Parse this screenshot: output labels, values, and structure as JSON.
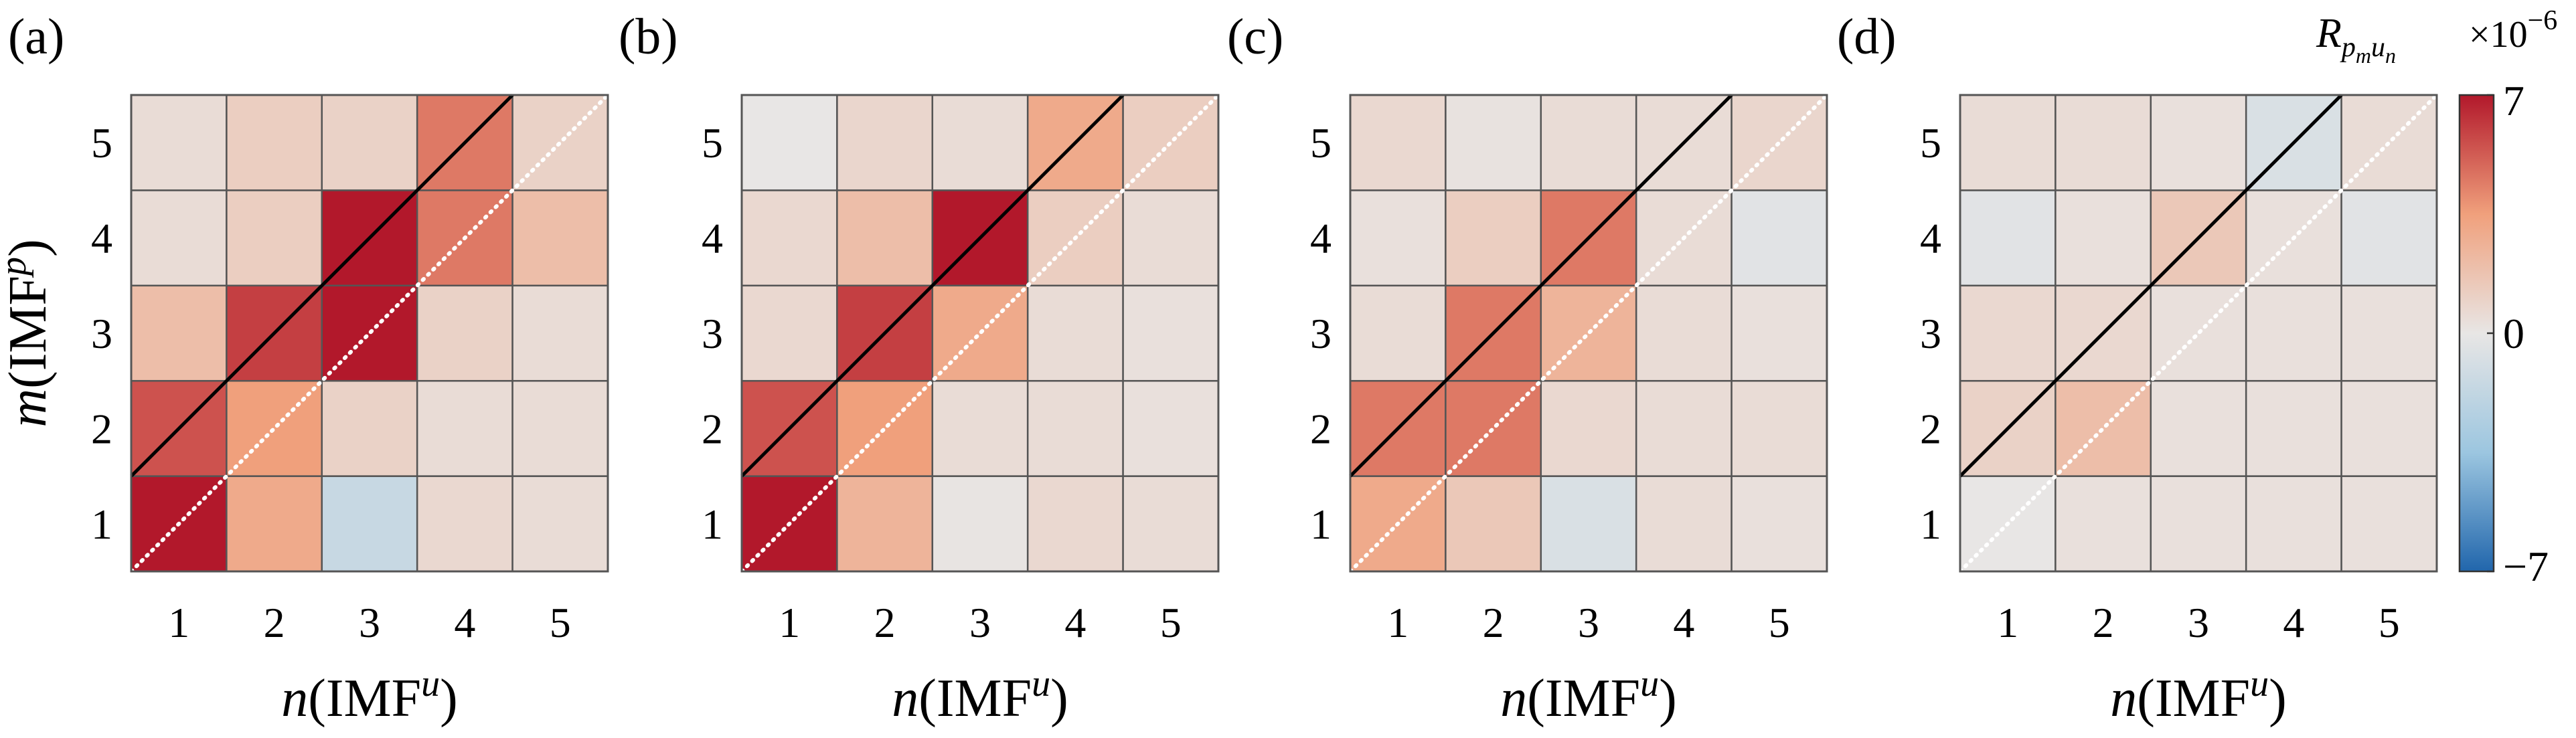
{
  "chart_data": [
    {
      "type": "heatmap",
      "title": "(a)",
      "x_label": [
        "n",
        "(IMF",
        "u",
        ")"
      ],
      "y_label": [
        "m",
        "(IMF",
        "p",
        ")"
      ],
      "xlim": [
        0.5,
        5.5
      ],
      "ylim": [
        0.5,
        5.5
      ],
      "xticks": [
        1,
        2,
        3,
        4,
        5
      ],
      "yticks": [
        1,
        2,
        3,
        4,
        5
      ],
      "z": [
        [
          7,
          3.0,
          -1.5,
          0.7,
          0.5
        ],
        [
          5.5,
          3.5,
          1.0,
          0.5,
          0.5
        ],
        [
          2.0,
          6.0,
          7,
          1.0,
          0.5
        ],
        [
          0.5,
          1.2,
          7,
          4.5,
          2.0
        ],
        [
          0.5,
          1.2,
          1.0,
          4.5,
          1.0
        ]
      ]
    },
    {
      "type": "heatmap",
      "title": "(b)",
      "x_label": [
        "n",
        "(IMF",
        "u",
        ")"
      ],
      "xlim": [
        0.5,
        5.5
      ],
      "ylim": [
        0.5,
        5.5
      ],
      "xticks": [
        1,
        2,
        3,
        4,
        5
      ],
      "yticks": [
        1,
        2,
        3,
        4,
        5
      ],
      "z": [
        [
          7,
          2.5,
          0.1,
          0.7,
          0.5
        ],
        [
          5.5,
          3.5,
          0.5,
          0.5,
          0.3
        ],
        [
          0.7,
          6.0,
          3.0,
          0.5,
          0.3
        ],
        [
          0.7,
          2.0,
          7,
          1.2,
          0.5
        ],
        [
          0,
          0.8,
          0.5,
          3.0,
          1.2
        ]
      ]
    },
    {
      "type": "heatmap",
      "title": "(c)",
      "x_label": [
        "n",
        "(IMF",
        "u",
        ")"
      ],
      "xlim": [
        0.5,
        5.5
      ],
      "ylim": [
        0.5,
        5.5
      ],
      "xticks": [
        1,
        2,
        3,
        4,
        5
      ],
      "yticks": [
        1,
        2,
        3,
        4,
        5
      ],
      "z": [
        [
          3.0,
          1.5,
          -0.7,
          0.5,
          0.3
        ],
        [
          4.5,
          4.5,
          0.7,
          0.5,
          0.5
        ],
        [
          0.5,
          4.5,
          2.5,
          0.5,
          0.3
        ],
        [
          0.3,
          1.2,
          4.5,
          0.5,
          -0.3
        ],
        [
          0.7,
          0.2,
          0.5,
          0.5,
          0.8
        ]
      ]
    },
    {
      "type": "heatmap",
      "title": "(d)",
      "x_label": [
        "n",
        "(IMF",
        "u",
        ")"
      ],
      "xlim": [
        0.5,
        5.5
      ],
      "ylim": [
        0.5,
        5.5
      ],
      "xticks": [
        1,
        2,
        3,
        4,
        5
      ],
      "yticks": [
        1,
        2,
        3,
        4,
        5
      ],
      "z": [
        [
          0,
          0.3,
          0.3,
          0.3,
          0.3
        ],
        [
          1.0,
          2.0,
          0.3,
          0.3,
          0.3
        ],
        [
          0.7,
          0.7,
          0.3,
          0.3,
          0.3
        ],
        [
          -0.3,
          0.3,
          1.5,
          0.3,
          -0.3
        ],
        [
          0.5,
          0.5,
          0.3,
          -0.7,
          0.5
        ]
      ],
      "colorbar": {
        "label": [
          "R",
          "p",
          "m",
          "u",
          "n"
        ],
        "scale_label": [
          "×10",
          "−6"
        ],
        "zlim": [
          -7,
          7
        ],
        "zticks": [
          {
            "value": -7,
            "label": "−7"
          },
          0,
          7
        ],
        "colors": [
          "#2166ac",
          "#9cc6e0",
          "#e8e6e5",
          "#f0a07c",
          "#b2182b"
        ]
      }
    }
  ]
}
